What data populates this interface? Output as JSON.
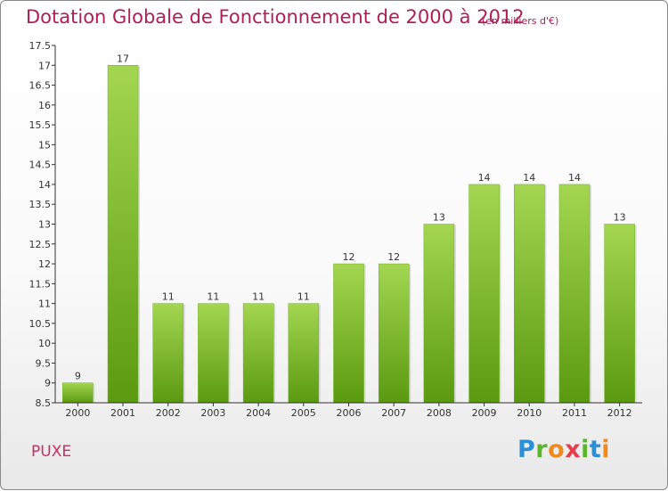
{
  "header": {
    "title": "Dotation Globale de Fonctionnement de 2000 à 2012",
    "unit": "(en milliers d'€)"
  },
  "footer": {
    "commune": "PUXE",
    "logo_text": "Proxiti"
  },
  "colors": {
    "title": "#b01e55",
    "bar_light": "#9fd24c",
    "bar_dark": "#5e9d12",
    "axis": "#333333"
  },
  "chart_data": {
    "type": "bar",
    "categories": [
      "2000",
      "2001",
      "2002",
      "2003",
      "2004",
      "2005",
      "2006",
      "2007",
      "2008",
      "2009",
      "2010",
      "2011",
      "2012"
    ],
    "values": [
      9,
      17,
      11,
      11,
      11,
      11,
      12,
      12,
      13,
      14,
      14,
      14,
      13
    ],
    "data_labels": [
      "9",
      "17",
      "11",
      "11",
      "11",
      "11",
      "12",
      "12",
      "13",
      "14",
      "14",
      "14",
      "13"
    ],
    "title": "Dotation Globale de Fonctionnement de 2000 à 2012",
    "ylim": [
      8.5,
      17.5
    ],
    "yticks": [
      "8.5",
      "9",
      "9.5",
      "10",
      "10.5",
      "11",
      "11.5",
      "12",
      "12.5",
      "13",
      "13.5",
      "14",
      "14.5",
      "15",
      "15.5",
      "16",
      "16.5",
      "17",
      "17.5"
    ],
    "grid": false,
    "legend": "none"
  }
}
